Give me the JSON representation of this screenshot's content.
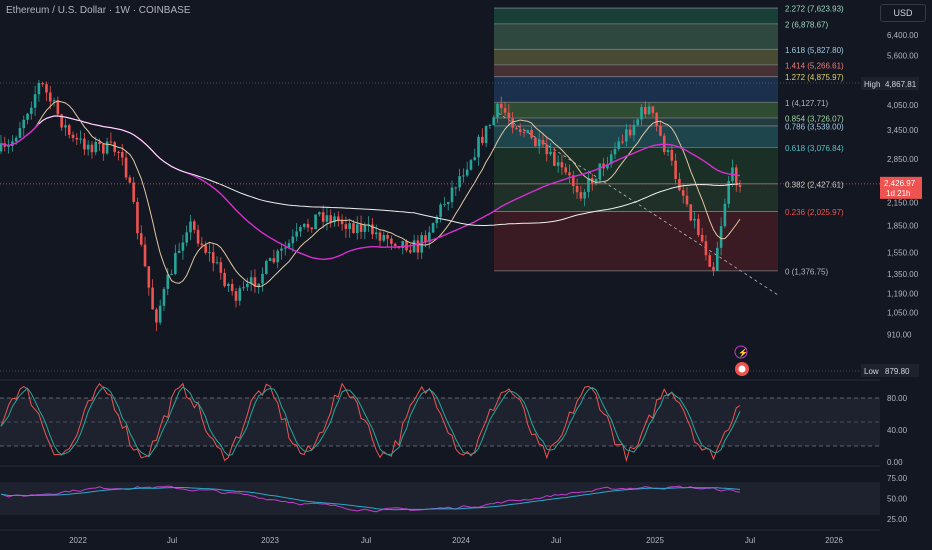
{
  "header": {
    "symbol_title": "Ethereum / U.S. Dollar · 1W · COINBASE",
    "currency_button": "USD"
  },
  "colors": {
    "background": "#131722",
    "up_candle": "#26a69a",
    "down_candle": "#ef5350",
    "ma_magenta": "#d62fd0",
    "ma_tan": "#e0c7a0",
    "ma_white": "#f0f0f0",
    "stoch_k": "#ef5350",
    "stoch_d": "#26a69a",
    "rsi": "#2aa7c9",
    "rsi_ma": "#c33bcf"
  },
  "markers": {
    "high_label": "High",
    "high_value": "4,867.81",
    "low_label": "Low",
    "low_value": "879.80",
    "last_price": "2,426.97",
    "countdown": "1d 21h"
  },
  "chart_data": {
    "type": "candlestick",
    "title": "Ethereum / U.S. Dollar",
    "interval": "1W",
    "y_scale": "log",
    "y_ticks": [
      "6,400.00",
      "5,600.00",
      "4,050.00",
      "3,450.00",
      "2,850.00",
      "2,150.00",
      "1,850.00",
      "1,550.00",
      "1,350.00",
      "1,190.00",
      "1,050.00",
      "910.00"
    ],
    "x_ticks": [
      "2022",
      "Jul",
      "2023",
      "Jul",
      "2024",
      "Jul",
      "2025",
      "Jul",
      "2026"
    ],
    "price_path": [
      {
        "date": "2021-09",
        "price": 3000
      },
      {
        "date": "2021-11",
        "price": 4700
      },
      {
        "date": "2022-01",
        "price": 3200
      },
      {
        "date": "2022-04",
        "price": 3000
      },
      {
        "date": "2022-06",
        "price": 1000
      },
      {
        "date": "2022-08",
        "price": 1900
      },
      {
        "date": "2022-11",
        "price": 1150
      },
      {
        "date": "2023-04",
        "price": 2000
      },
      {
        "date": "2023-10",
        "price": 1600
      },
      {
        "date": "2024-03",
        "price": 4000
      },
      {
        "date": "2024-08",
        "price": 2300
      },
      {
        "date": "2024-12",
        "price": 4050
      },
      {
        "date": "2025-04",
        "price": 1400
      },
      {
        "date": "2025-05",
        "price": 2600
      },
      {
        "date": "2025-06",
        "price": 2427
      }
    ],
    "fibonacci": [
      {
        "label": "2.272 (7,623.93)",
        "value": 7623.93,
        "fill": "#1b4d3e"
      },
      {
        "label": "2 (6,878.67)",
        "value": 6878.67,
        "fill": "#3a5a4a"
      },
      {
        "label": "1.618 (5,827.80)",
        "value": 5827.8,
        "fill": "#5c5c3a"
      },
      {
        "label": "1.414 (5,266.61)",
        "value": 5266.61,
        "fill": "#5a3a3a"
      },
      {
        "label": "1.272 (4,875.97)",
        "value": 4875.97,
        "fill": "#1f3a5c"
      },
      {
        "label": "1 (4,127.71)",
        "value": 4127.71,
        "fill": "#3a5f3a"
      },
      {
        "label": "0.854 (3,726.07)",
        "value": 3726.07,
        "fill": "#2a4a4a"
      },
      {
        "label": "0.786 (3,539.00)",
        "value": 3539.0,
        "fill": "#22555a"
      },
      {
        "label": "0.618 (3,076.84)",
        "value": 3076.84,
        "fill": "#1e3a2a"
      },
      {
        "label": "0.382 (2,427.61)",
        "value": 2427.61,
        "fill": "#233a2a"
      },
      {
        "label": "0.236 (2,025.97)",
        "value": 2025.97,
        "fill": "#4a1e24"
      },
      {
        "label": "0 (1,376.75)",
        "value": 1376.75,
        "fill": ""
      }
    ],
    "stochastic": {
      "y_ticks": [
        "80.00",
        "40.00",
        "0.00"
      ],
      "upper": 80,
      "lower": 20
    },
    "rsi": {
      "y_ticks": [
        "75.00",
        "50.00",
        "25.00"
      ]
    }
  }
}
